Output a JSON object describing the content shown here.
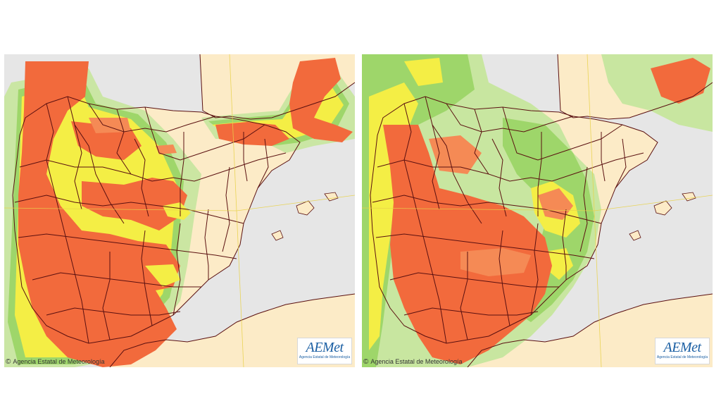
{
  "panels": [
    {
      "id": "left",
      "credit": "Agencia Estatal de Meteorología",
      "logo_text": "AEMet",
      "logo_subtitle": "Agencia Estatal de Meteorología"
    },
    {
      "id": "right",
      "credit": "Agencia Estatal de Meteorología",
      "logo_text": "AEMet",
      "logo_subtitle": "Agencia Estatal de Meteorología"
    }
  ],
  "legend_colors": {
    "sea": "#e6e6e6",
    "land_base": "#fcebc7",
    "light_green": "#c8e6a0",
    "green": "#9ed66a",
    "yellow": "#f4ee45",
    "orange": "#f58a55",
    "red_orange": "#f26a3c",
    "border": "#5a1010"
  }
}
